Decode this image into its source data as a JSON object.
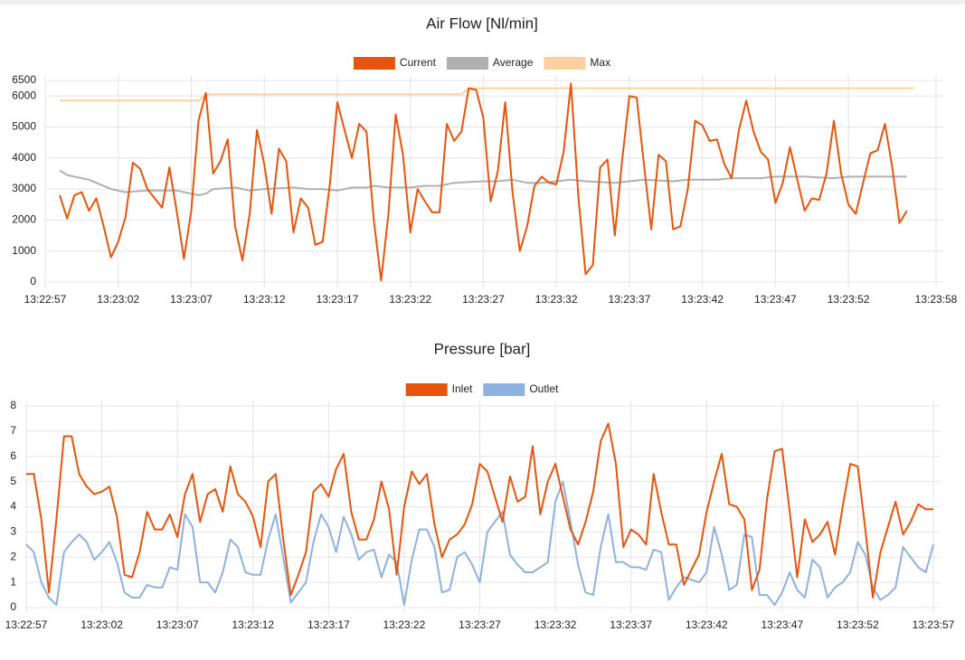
{
  "chart_data": [
    {
      "type": "line",
      "title": "Air Flow [Nl/min]",
      "xlim": [
        "13:22:57",
        "13:23:58"
      ],
      "xticks": [
        "13:22:57",
        "13:23:02",
        "13:23:07",
        "13:23:12",
        "13:23:17",
        "13:23:22",
        "13:23:27",
        "13:23:32",
        "13:23:37",
        "13:23:42",
        "13:23:47",
        "13:23:52",
        "13:23:58"
      ],
      "ylim": [
        0,
        6500
      ],
      "yticks": [
        0,
        1000,
        2000,
        3000,
        4000,
        5000,
        6000,
        6500
      ],
      "grid": true,
      "legend": "top",
      "series": [
        {
          "name": "Current",
          "color": "#e6550d",
          "x": [
            "13:22:58",
            "13:22:58.5",
            "13:22:59",
            "13:22:59.5",
            "13:23:00",
            "13:23:00.5",
            "13:23:01",
            "13:23:01.5",
            "13:23:02",
            "13:23:02.5",
            "13:23:03",
            "13:23:03.5",
            "13:23:04",
            "13:23:04.5",
            "13:23:05",
            "13:23:05.5",
            "13:23:06",
            "13:23:06.5",
            "13:23:07",
            "13:23:07.5",
            "13:23:08",
            "13:23:08.5",
            "13:23:09",
            "13:23:09.5",
            "13:23:10",
            "13:23:10.5",
            "13:23:11",
            "13:23:11.5",
            "13:23:12",
            "13:23:12.5",
            "13:23:13",
            "13:23:13.5",
            "13:23:14",
            "13:23:14.5",
            "13:23:15",
            "13:23:15.5",
            "13:23:16",
            "13:23:16.5",
            "13:23:17",
            "13:23:17.5",
            "13:23:18",
            "13:23:18.5",
            "13:23:19",
            "13:23:19.5",
            "13:23:20",
            "13:23:20.5",
            "13:23:21",
            "13:23:21.5",
            "13:23:22",
            "13:23:22.5",
            "13:23:23",
            "13:23:23.5",
            "13:23:24",
            "13:23:24.5",
            "13:23:25",
            "13:23:25.5",
            "13:23:26",
            "13:23:26.5",
            "13:23:27",
            "13:23:27.5",
            "13:23:28",
            "13:23:28.5",
            "13:23:29",
            "13:23:29.5",
            "13:23:30",
            "13:23:30.5",
            "13:23:31",
            "13:23:31.5",
            "13:23:32",
            "13:23:32.5",
            "13:23:33",
            "13:23:33.5",
            "13:23:34",
            "13:23:34.5",
            "13:23:35",
            "13:23:35.5",
            "13:23:36",
            "13:23:36.5",
            "13:23:37",
            "13:23:37.5",
            "13:23:38",
            "13:23:38.5",
            "13:23:39",
            "13:23:39.5",
            "13:23:40",
            "13:23:40.5",
            "13:23:41",
            "13:23:41.5",
            "13:23:42",
            "13:23:42.5",
            "13:23:43",
            "13:23:43.5",
            "13:23:44",
            "13:23:44.5",
            "13:23:45",
            "13:23:45.5",
            "13:23:46",
            "13:23:46.5",
            "13:23:47",
            "13:23:47.5",
            "13:23:48",
            "13:23:48.5",
            "13:23:49",
            "13:23:49.5",
            "13:23:50",
            "13:23:50.5",
            "13:23:51",
            "13:23:51.5",
            "13:23:52",
            "13:23:52.5",
            "13:23:53",
            "13:23:53.5",
            "13:23:54",
            "13:23:54.5",
            "13:23:55",
            "13:23:55.5",
            "13:23:56"
          ],
          "values": [
            2800,
            2050,
            2800,
            2900,
            2300,
            2700,
            1800,
            800,
            1300,
            2100,
            3850,
            3650,
            3000,
            2700,
            2400,
            3700,
            2300,
            750,
            2300,
            5200,
            6100,
            3500,
            3900,
            4600,
            1800,
            700,
            2200,
            4900,
            3800,
            2200,
            4300,
            3900,
            1600,
            2700,
            2400,
            1200,
            1300,
            3200,
            5800,
            4900,
            4000,
            5100,
            4850,
            2000,
            50,
            2200,
            5400,
            4100,
            1600,
            3000,
            2600,
            2250,
            2250,
            5100,
            4550,
            4850,
            6250,
            6200,
            5300,
            2600,
            3600,
            5800,
            2900,
            1000,
            1800,
            3100,
            3400,
            3200,
            3150,
            4200,
            6400,
            2800,
            250,
            550,
            3700,
            3950,
            1500,
            3900,
            6000,
            5950,
            3800,
            1700,
            4100,
            3900,
            1700,
            1800,
            3000,
            5200,
            5050,
            4550,
            4600,
            3800,
            3350,
            4900,
            5850,
            4850,
            4200,
            3950,
            2550,
            3200,
            4350,
            3300,
            2300,
            2700,
            2650,
            3500,
            5200,
            3500,
            2500,
            2200,
            3200,
            4150,
            4250,
            5100,
            3700,
            1900,
            2300
          ]
        },
        {
          "name": "Average",
          "color": "#b0b0b0",
          "x": [
            "13:22:58",
            "13:22:58.5",
            "13:22:59",
            "13:23:00",
            "13:23:01.5",
            "13:23:02.5",
            "13:23:04",
            "13:23:06",
            "13:23:07",
            "13:23:07.5",
            "13:23:08",
            "13:23:08.5",
            "13:23:10",
            "13:23:11",
            "13:23:12",
            "13:23:14",
            "13:23:15",
            "13:23:16",
            "13:23:17",
            "13:23:18",
            "13:23:19",
            "13:23:19.5",
            "13:23:20.5",
            "13:23:22",
            "13:23:23",
            "13:23:24",
            "13:23:25",
            "13:23:27",
            "13:23:28",
            "13:23:29",
            "13:23:30",
            "13:23:31",
            "13:23:33",
            "13:23:34",
            "13:23:36",
            "13:23:37",
            "13:23:38",
            "13:23:40",
            "13:23:41",
            "13:23:43",
            "13:23:44",
            "13:23:46",
            "13:23:47",
            "13:23:49",
            "13:23:51",
            "13:23:52",
            "13:23:56"
          ],
          "values": [
            3600,
            3450,
            3400,
            3300,
            3000,
            2900,
            2950,
            2950,
            2850,
            2800,
            2850,
            3000,
            3050,
            2950,
            3000,
            3050,
            3000,
            3000,
            2950,
            3050,
            3050,
            3100,
            3050,
            3050,
            3100,
            3100,
            3200,
            3250,
            3250,
            3300,
            3200,
            3200,
            3300,
            3250,
            3200,
            3250,
            3300,
            3250,
            3300,
            3300,
            3350,
            3350,
            3400,
            3400,
            3350,
            3400,
            3400
          ]
        },
        {
          "name": "Max",
          "color": "#fdd0a2",
          "x": [
            "13:22:58",
            "13:23:07.5",
            "13:23:08",
            "13:23:25.5",
            "13:23:26",
            "13:23:56.5"
          ],
          "values": [
            5850,
            5850,
            6050,
            6050,
            6250,
            6250
          ]
        }
      ]
    },
    {
      "type": "line",
      "title": "Pressure [bar]",
      "xlim": [
        "13:22:57",
        "13:23:57"
      ],
      "xticks": [
        "13:22:57",
        "13:23:02",
        "13:23:07",
        "13:23:12",
        "13:23:17",
        "13:23:22",
        "13:23:27",
        "13:23:32",
        "13:23:37",
        "13:23:42",
        "13:23:47",
        "13:23:52",
        "13:23:57"
      ],
      "ylim": [
        0,
        8
      ],
      "yticks": [
        0,
        1,
        2,
        3,
        4,
        5,
        6,
        7,
        8
      ],
      "grid": true,
      "legend": "top",
      "x": [
        "13:22:57",
        "13:22:57.5",
        "13:22:58",
        "13:22:58.5",
        "13:22:59",
        "13:22:59.5",
        "13:23:00",
        "13:23:00.5",
        "13:23:01",
        "13:23:01.5",
        "13:23:02",
        "13:23:02.5",
        "13:23:03",
        "13:23:03.5",
        "13:23:04",
        "13:23:04.5",
        "13:23:05",
        "13:23:05.5",
        "13:23:06",
        "13:23:06.5",
        "13:23:07",
        "13:23:07.5",
        "13:23:08",
        "13:23:08.5",
        "13:23:09",
        "13:23:09.5",
        "13:23:10",
        "13:23:10.5",
        "13:23:11",
        "13:23:11.5",
        "13:23:12",
        "13:23:12.5",
        "13:23:13",
        "13:23:13.5",
        "13:23:14",
        "13:23:14.5",
        "13:23:15",
        "13:23:15.5",
        "13:23:16",
        "13:23:16.5",
        "13:23:17",
        "13:23:17.5",
        "13:23:18",
        "13:23:18.5",
        "13:23:19",
        "13:23:19.5",
        "13:23:20",
        "13:23:20.5",
        "13:23:21",
        "13:23:21.5",
        "13:23:22",
        "13:23:22.5",
        "13:23:23",
        "13:23:23.5",
        "13:23:24",
        "13:23:24.5",
        "13:23:25",
        "13:23:25.5",
        "13:23:26",
        "13:23:26.5",
        "13:23:27",
        "13:23:27.5",
        "13:23:28",
        "13:23:28.5",
        "13:23:29",
        "13:23:29.5",
        "13:23:30",
        "13:23:30.5",
        "13:23:31",
        "13:23:31.5",
        "13:23:32",
        "13:23:32.5",
        "13:23:33",
        "13:23:33.5",
        "13:23:34",
        "13:23:34.5",
        "13:23:35",
        "13:23:35.5",
        "13:23:36",
        "13:23:36.5",
        "13:23:37",
        "13:23:37.5",
        "13:23:38",
        "13:23:38.5",
        "13:23:39",
        "13:23:39.5",
        "13:23:40",
        "13:23:40.5",
        "13:23:41",
        "13:23:41.5",
        "13:23:42",
        "13:23:42.5",
        "13:23:43",
        "13:23:43.5",
        "13:23:44",
        "13:23:44.5",
        "13:23:45",
        "13:23:45.5",
        "13:23:46",
        "13:23:46.5",
        "13:23:47",
        "13:23:47.5",
        "13:23:48",
        "13:23:48.5",
        "13:23:49",
        "13:23:49.5",
        "13:23:50",
        "13:23:50.5",
        "13:23:51",
        "13:23:51.5",
        "13:23:52",
        "13:23:52.5",
        "13:23:53",
        "13:23:53.5",
        "13:23:54",
        "13:23:54.5",
        "13:23:55",
        "13:23:55.5",
        "13:23:56",
        "13:23:56.5",
        "13:23:57"
      ],
      "series": [
        {
          "name": "Inlet",
          "color": "#e6550d",
          "values": [
            5.3,
            5.3,
            3.5,
            0.6,
            3.5,
            6.8,
            6.8,
            5.3,
            4.8,
            4.5,
            4.6,
            4.8,
            3.6,
            1.3,
            1.2,
            2.2,
            3.8,
            3.1,
            3.1,
            3.7,
            2.8,
            4.5,
            5.3,
            3.4,
            4.5,
            4.7,
            3.8,
            5.6,
            4.5,
            4.2,
            3.6,
            2.4,
            5.0,
            5.3,
            2.7,
            0.5,
            1.3,
            2.2,
            4.6,
            4.9,
            4.4,
            5.5,
            6.1,
            3.8,
            2.7,
            2.7,
            3.5,
            5.0,
            3.9,
            1.3,
            4.0,
            5.4,
            4.9,
            5.3,
            3.3,
            2.0,
            2.7,
            2.9,
            3.3,
            4.1,
            5.7,
            5.4,
            4.4,
            3.4,
            5.2,
            4.2,
            4.4,
            6.4,
            3.7,
            5.0,
            5.7,
            4.4,
            3.1,
            2.5,
            3.4,
            4.6,
            6.6,
            7.3,
            5.7,
            2.4,
            3.1,
            2.9,
            2.5,
            5.3,
            3.8,
            2.5,
            2.5,
            0.9,
            1.5,
            2.1,
            3.8,
            5.0,
            6.1,
            4.1,
            4.0,
            3.5,
            0.7,
            1.5,
            4.3,
            6.2,
            6.3,
            3.8,
            1.2,
            3.5,
            2.6,
            2.9,
            3.4,
            2.1,
            4.0,
            5.7,
            5.6,
            3.1,
            0.4,
            2.2,
            3.2,
            4.2,
            2.9,
            3.4,
            4.1,
            3.9,
            3.9
          ]
        },
        {
          "name": "Outlet",
          "color": "#8fb1e0",
          "values": [
            2.5,
            2.2,
            1.0,
            0.4,
            0.1,
            2.2,
            2.6,
            2.9,
            2.6,
            1.9,
            2.2,
            2.6,
            1.8,
            0.6,
            0.4,
            0.4,
            0.9,
            0.8,
            0.8,
            1.6,
            1.5,
            3.7,
            3.2,
            1.0,
            1.0,
            0.6,
            1.4,
            2.7,
            2.4,
            1.4,
            1.3,
            1.3,
            2.7,
            3.7,
            2.0,
            0.2,
            0.6,
            1.0,
            2.6,
            3.7,
            3.2,
            2.2,
            3.6,
            2.9,
            1.9,
            2.2,
            2.3,
            1.2,
            2.1,
            1.8,
            0.1,
            1.9,
            3.1,
            3.1,
            2.4,
            0.6,
            0.7,
            2.0,
            2.2,
            1.7,
            1.0,
            3.0,
            3.4,
            3.8,
            2.1,
            1.7,
            1.4,
            1.4,
            1.6,
            1.8,
            4.2,
            5.0,
            3.4,
            1.7,
            0.6,
            0.5,
            2.4,
            3.7,
            1.8,
            1.8,
            1.6,
            1.6,
            1.5,
            2.3,
            2.2,
            0.3,
            0.8,
            1.2,
            1.1,
            1.0,
            1.4,
            3.2,
            2.1,
            0.7,
            0.9,
            2.9,
            2.8,
            0.5,
            0.5,
            0.1,
            0.6,
            1.4,
            0.7,
            0.4,
            1.9,
            1.6,
            0.4,
            0.8,
            1.0,
            1.4,
            2.6,
            2.1,
            0.8,
            0.3,
            0.5,
            0.8,
            2.4,
            2.0,
            1.6,
            1.4,
            2.5
          ]
        }
      ]
    }
  ]
}
